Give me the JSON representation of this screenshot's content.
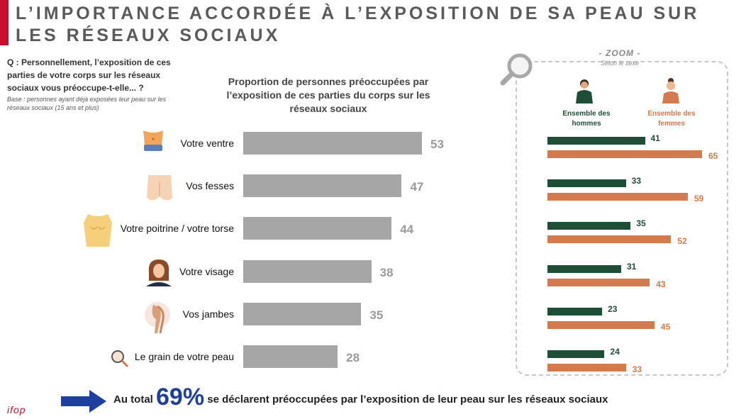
{
  "header": {
    "title": "L’IMPORTANCE ACCORDÉE À L’EXPOSITION DE SA PEAU SUR LES RÉSEAUX SOCIAUX",
    "accent_color": "#c8102e"
  },
  "question": "Q : Personnellement, l’exposition de ces parties de votre corps sur les réseaux sociaux vous préoccupe-t-elle... ?",
  "base": "Base : personnes ayant déjà exposées leur peau sur les réseaux sociaux (15 ans et plus)",
  "chart_data": [
    {
      "type": "bar",
      "orientation": "horizontal",
      "title": "Proportion de personnes préoccupées par l’exposition de ces parties du corps sur les réseaux sociaux",
      "categories": [
        "Votre ventre",
        "Vos fesses",
        "Votre poitrine / votre torse",
        "Votre visage",
        "Vos jambes",
        "Le grain de votre peau"
      ],
      "icons": [
        "belly-icon",
        "buttocks-icon",
        "torso-icon",
        "face-icon",
        "legs-icon",
        "magnifier-icon"
      ],
      "values": [
        53,
        47,
        44,
        38,
        35,
        28
      ],
      "xlim": [
        0,
        53
      ],
      "grid": false,
      "bar_color": "#a6a6a6",
      "value_color": "#9a9a9a"
    },
    {
      "type": "bar",
      "orientation": "horizontal",
      "zoom_label": "- ZOOM -",
      "subtitle": "Selon le sexe",
      "categories": [
        "Votre ventre",
        "Vos fesses",
        "Votre poitrine / votre torse",
        "Votre visage",
        "Vos jambes",
        "Le grain de votre peau"
      ],
      "series": [
        {
          "name": "Ensemble des hommes",
          "values": [
            41,
            33,
            35,
            31,
            23,
            24
          ],
          "color": "#1f4e36",
          "icon": "man-icon"
        },
        {
          "name": "Ensemble des femmes",
          "values": [
            65,
            59,
            52,
            43,
            45,
            33
          ],
          "color": "#d47a4f",
          "icon": "woman-icon"
        }
      ],
      "xlim": [
        0,
        65
      ],
      "grid": false
    }
  ],
  "footer": {
    "prefix": "Au total",
    "percent": "69%",
    "suffix": "se déclarent préoccupées par l’exposition de leur peau sur les réseaux sociaux",
    "arrow_color": "#1f3f9e",
    "logo": "ifop"
  }
}
